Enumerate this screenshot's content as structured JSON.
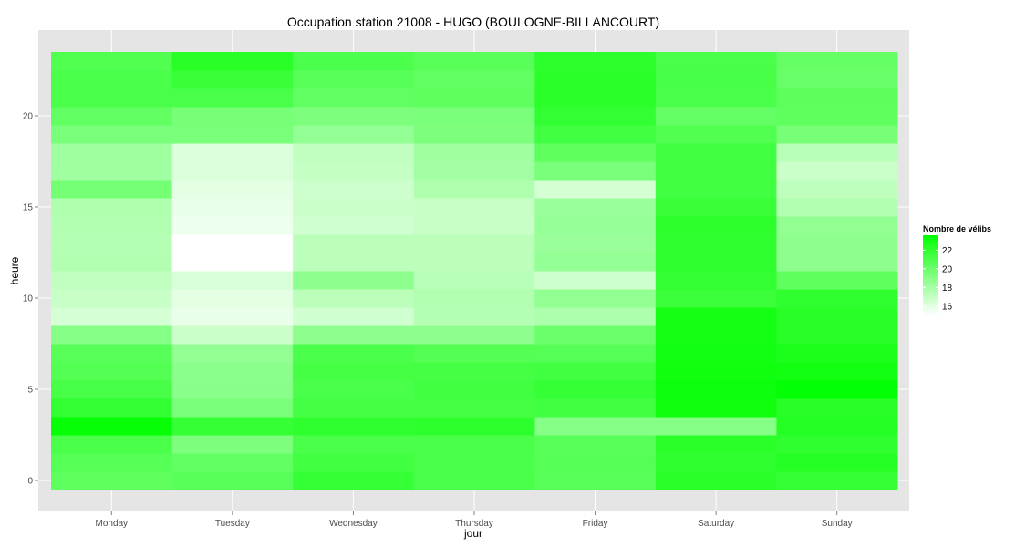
{
  "chart_data": {
    "type": "heatmap",
    "title": "Occupation station 21008 - HUGO (BOULOGNE-BILLANCOURT)",
    "xlabel": "jour",
    "ylabel": "heure",
    "x_categories": [
      "Monday",
      "Tuesday",
      "Wednesday",
      "Thursday",
      "Friday",
      "Saturday",
      "Sunday"
    ],
    "y_values": [
      0,
      1,
      2,
      3,
      4,
      5,
      6,
      7,
      8,
      9,
      10,
      11,
      12,
      13,
      14,
      15,
      16,
      17,
      18,
      19,
      20,
      21,
      22,
      23
    ],
    "y_ticks": [
      0,
      5,
      10,
      15,
      20
    ],
    "ylim": [
      -0.5,
      23.5
    ],
    "values": [
      [
        20.4,
        20.6,
        21.8,
        21.1,
        20.6,
        22.2,
        21.8
      ],
      [
        20.7,
        20.3,
        21.4,
        21.1,
        20.7,
        22.0,
        22.4
      ],
      [
        21.1,
        19.4,
        21.1,
        21.1,
        20.6,
        22.2,
        22.0
      ],
      [
        23.4,
        21.8,
        22.0,
        22.1,
        19.1,
        19.1,
        22.4
      ],
      [
        21.9,
        19.5,
        21.3,
        21.3,
        21.4,
        23.1,
        22.3
      ],
      [
        21.2,
        19.0,
        21.1,
        21.4,
        21.8,
        23.2,
        23.5
      ],
      [
        20.8,
        18.9,
        21.3,
        21.3,
        21.4,
        23.1,
        23.0
      ],
      [
        20.6,
        18.7,
        21.1,
        20.8,
        20.7,
        23.0,
        22.7
      ],
      [
        19.1,
        16.8,
        18.8,
        18.8,
        20.0,
        22.9,
        22.3
      ],
      [
        16.4,
        15.7,
        16.6,
        17.5,
        17.8,
        22.9,
        22.3
      ],
      [
        16.9,
        15.9,
        17.3,
        17.6,
        18.7,
        21.6,
        22.0
      ],
      [
        17.1,
        16.3,
        18.8,
        17.4,
        16.7,
        21.9,
        20.4
      ],
      [
        17.6,
        15.0,
        17.3,
        17.3,
        18.6,
        22.0,
        18.8
      ],
      [
        17.5,
        15.0,
        17.3,
        17.3,
        18.4,
        22.0,
        18.8
      ],
      [
        17.6,
        15.6,
        16.6,
        16.9,
        18.5,
        22.1,
        18.7
      ],
      [
        17.7,
        15.7,
        16.8,
        16.9,
        18.4,
        21.7,
        17.6
      ],
      [
        19.7,
        15.9,
        16.7,
        17.7,
        16.5,
        21.4,
        17.2
      ],
      [
        18.2,
        16.2,
        17.0,
        18.1,
        19.5,
        21.4,
        16.8
      ],
      [
        18.3,
        16.2,
        17.1,
        18.2,
        20.4,
        21.4,
        17.4
      ],
      [
        19.5,
        19.5,
        18.6,
        19.4,
        21.4,
        20.9,
        19.6
      ],
      [
        20.3,
        19.6,
        19.4,
        19.5,
        21.9,
        20.2,
        20.4
      ],
      [
        21.1,
        21.1,
        20.3,
        20.4,
        22.2,
        21.1,
        20.5
      ],
      [
        21.1,
        21.7,
        20.6,
        20.3,
        22.2,
        21.2,
        20.1
      ],
      [
        20.9,
        22.3,
        21.0,
        20.6,
        22.1,
        21.1,
        20.2
      ]
    ],
    "color_scale": {
      "min": 15.0,
      "max": 23.6,
      "low": "#ffffff",
      "high": "#00ff00"
    },
    "legend": {
      "title": "Nombre de vélibs",
      "ticks": [
        16,
        18,
        20,
        22
      ],
      "position": "right"
    },
    "grid": true,
    "panel_background": "#e5e5e5"
  }
}
